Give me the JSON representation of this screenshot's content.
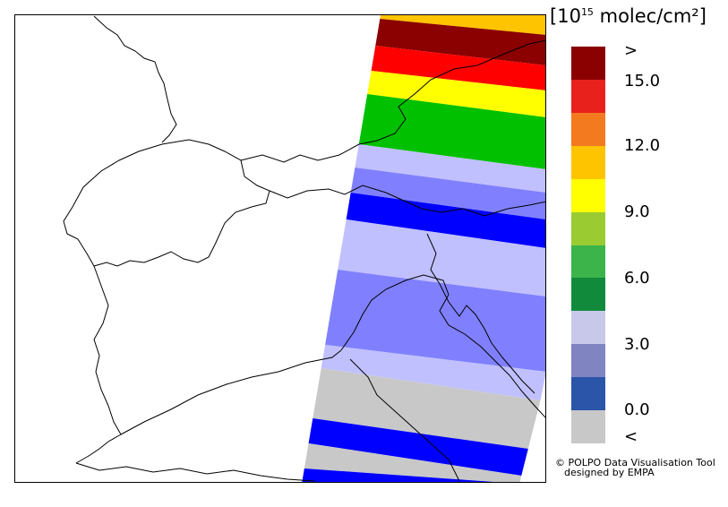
{
  "unit": {
    "prefix": "10",
    "exponent": "15",
    "suffix": " molec/cm²"
  },
  "legend": {
    "bins": [
      {
        "color": "#8b0000"
      },
      {
        "color": "#e8211d"
      },
      {
        "color": "#f37a1f"
      },
      {
        "color": "#ffc400"
      },
      {
        "color": "#ffff00"
      },
      {
        "color": "#9acc32"
      },
      {
        "color": "#3cb44a"
      },
      {
        "color": "#128a3c"
      },
      {
        "color": "#c8c8ea"
      },
      {
        "color": "#8085c2"
      },
      {
        "color": "#2a55a8"
      },
      {
        "color": "#c8c8c8"
      }
    ],
    "labels": [
      ">",
      "15.0",
      "12.0",
      "9.0",
      "6.0",
      "3.0",
      "0.0",
      "<"
    ]
  },
  "swath": {
    "bands": [
      {
        "color": "#ffc400"
      },
      {
        "color": "#8b0000"
      },
      {
        "color": "#ff0000"
      },
      {
        "color": "#ffff00"
      },
      {
        "color": "#00c000"
      },
      {
        "color": "#c0c0ff"
      },
      {
        "color": "#8080ff"
      },
      {
        "color": "#0000ff"
      },
      {
        "color": "#c0c0ff"
      },
      {
        "color": "#8080ff"
      },
      {
        "color": "#c0c0ff"
      },
      {
        "color": "#c8c8c8"
      },
      {
        "color": "#0000ff"
      },
      {
        "color": "#c8c8c8"
      },
      {
        "color": "#0000ff"
      }
    ]
  },
  "credit": {
    "line1": "© POLPO Data Visualisation Tool",
    "line2": "designed by EMPA"
  }
}
